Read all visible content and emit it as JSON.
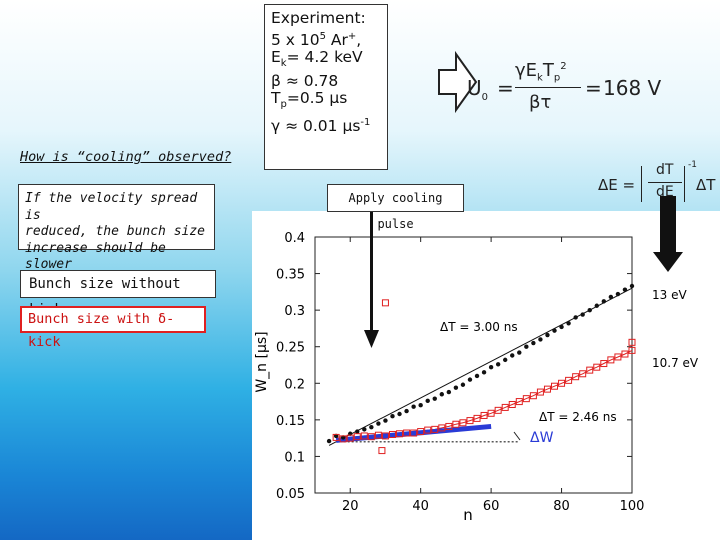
{
  "experiment": {
    "lines": [
      {
        "main": "Experiment:",
        "sup": "",
        "sub": "",
        "rest": ""
      },
      {
        "main": "5 x 10",
        "sup": "5",
        "sub": "",
        "rest": " Ar",
        "rest_sup": "+",
        "rest2": ","
      },
      {
        "main": "E",
        "sup": "",
        "sub": "k",
        "rest": "= 4.2 keV"
      },
      {
        "main": "β ≈ 0.78",
        "sup": "",
        "sub": "",
        "rest": ""
      },
      {
        "main": "T",
        "sup": "",
        "sub": "p",
        "rest": "=0.5 µs"
      },
      {
        "main": "γ ≈ 0.01 µs",
        "sup": "-1",
        "sub": "",
        "rest": ""
      }
    ]
  },
  "formula": {
    "lhs": "U",
    "lhs_sub": "0",
    "eq1": "=",
    "numerator": "γE",
    "numerator_sub1": "k",
    "numerator_mid": "T",
    "numerator_sub2": "p",
    "numerator_sup": "2",
    "denominator": "βτ",
    "eq2": "=",
    "result": "168 V"
  },
  "question": "How is “cooling” observed?",
  "velocity_text": [
    "If the velocity spread is",
    "reduced, the bunch size",
    "increase should be slower"
  ],
  "apply_pulse": "Apply cooling pulse",
  "dE_formula": {
    "lhs": "ΔE =",
    "num": "dT",
    "den": "dE",
    "sup": "-1",
    "rhs": "ΔT"
  },
  "legend": {
    "no_kick": "Bunch size without kick",
    "with_kick": "Bunch size with δ-kick"
  },
  "colors": {
    "no_kick": "#111111",
    "with_kick": "#e02020",
    "fit_blue": "#2a3bd6",
    "arrow_outline": "#222222"
  },
  "chart_data": {
    "type": "scatter",
    "xlabel": "n",
    "ylabel": "W_n [µs]",
    "xlim": [
      10,
      100
    ],
    "ylim": [
      0.05,
      0.4
    ],
    "xticks": [
      "20",
      "40",
      "60",
      "80",
      "100"
    ],
    "yticks": [
      "0.05",
      "0.1",
      "0.15",
      "0.2",
      "0.25",
      "0.3",
      "0.35",
      "0.4"
    ],
    "xtick_values": [
      20,
      40,
      60,
      80,
      100
    ],
    "ytick_values": [
      0.05,
      0.1,
      0.15,
      0.2,
      0.25,
      0.3,
      0.35,
      0.4
    ],
    "series": [
      {
        "name": "",
        "marker": "dot",
        "x": [
          14,
          16,
          18,
          20,
          22,
          24,
          26,
          28,
          30,
          32,
          34,
          36,
          38,
          40,
          42,
          44,
          46,
          48,
          50,
          52,
          54,
          56,
          58,
          60,
          62,
          64,
          66,
          68,
          70,
          72,
          74,
          76,
          78,
          80,
          82,
          84,
          86,
          88,
          90,
          92,
          94,
          96,
          98,
          100
        ],
        "y": [
          0.121,
          0.128,
          0.126,
          0.131,
          0.134,
          0.137,
          0.14,
          0.145,
          0.149,
          0.155,
          0.158,
          0.162,
          0.168,
          0.17,
          0.176,
          0.179,
          0.185,
          0.188,
          0.194,
          0.198,
          0.205,
          0.21,
          0.215,
          0.222,
          0.226,
          0.232,
          0.238,
          0.242,
          0.25,
          0.255,
          0.26,
          0.266,
          0.272,
          0.277,
          0.282,
          0.29,
          0.294,
          0.3,
          0.306,
          0.312,
          0.318,
          0.322,
          0.328,
          0.333
        ]
      },
      {
        "name": "",
        "marker": "square",
        "x": [
          16,
          18,
          20,
          22,
          24,
          26,
          28,
          30,
          32,
          34,
          36,
          38,
          40,
          42,
          44,
          46,
          48,
          50,
          52,
          54,
          56,
          58,
          60,
          62,
          64,
          66,
          68,
          70,
          72,
          74,
          76,
          78,
          80,
          82,
          84,
          86,
          88,
          90,
          92,
          94,
          96,
          98,
          100
        ],
        "y": [
          0.126,
          0.124,
          0.125,
          0.127,
          0.128,
          0.127,
          0.129,
          0.128,
          0.13,
          0.131,
          0.132,
          0.132,
          0.134,
          0.136,
          0.137,
          0.139,
          0.141,
          0.144,
          0.146,
          0.149,
          0.152,
          0.156,
          0.159,
          0.163,
          0.167,
          0.171,
          0.175,
          0.179,
          0.183,
          0.188,
          0.192,
          0.196,
          0.2,
          0.204,
          0.209,
          0.213,
          0.218,
          0.222,
          0.227,
          0.232,
          0.236,
          0.24,
          0.245
        ]
      }
    ],
    "outliers": [
      {
        "series": 1,
        "x": 30,
        "y": 0.31
      },
      {
        "series": 1,
        "x": 29,
        "y": 0.108
      },
      {
        "series": 1,
        "x": 100,
        "y": 0.256
      }
    ],
    "fit_lines": [
      {
        "series": 0,
        "x": [
          14,
          100
        ],
        "y": [
          0.115,
          0.33
        ]
      },
      {
        "series": 1,
        "x": [
          14,
          100
        ],
        "y": [
          0.118,
          0.245
        ],
        "curved": true
      }
    ],
    "blue_line": {
      "x": [
        16,
        60
      ],
      "y": [
        0.122,
        0.141
      ]
    },
    "dotted_line": {
      "x": [
        17,
        68
      ],
      "y": [
        0.12,
        0.12
      ]
    },
    "annotations": {
      "dT1": "ΔT = 3.00 ns",
      "dT2": "ΔT = 2.46 ns",
      "dW": "ΔW",
      "e13": "13 eV",
      "e107": "10.7 eV"
    }
  }
}
